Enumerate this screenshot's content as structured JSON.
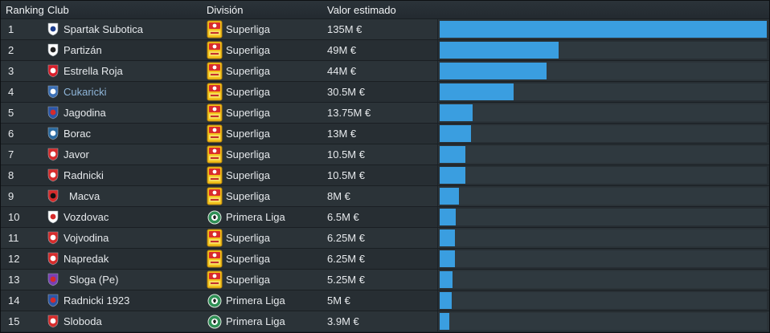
{
  "headers": {
    "ranking": "Ranking",
    "club": "Club",
    "division": "División",
    "value": "Valor estimado"
  },
  "colors": {
    "bar": "#3a9ee0",
    "link_club": "#8fb6d9",
    "background": "#232a30"
  },
  "rows": [
    {
      "rank": "1",
      "club": "Spartak Subotica",
      "division": "Superliga",
      "value": "135M €",
      "value_m": 135,
      "crest": "spartak-crest-icon",
      "comp": "superliga-logo-icon"
    },
    {
      "rank": "2",
      "club": "Partizán",
      "division": "Superliga",
      "value": "49M €",
      "value_m": 49,
      "crest": "partizan-crest-icon",
      "comp": "superliga-logo-icon"
    },
    {
      "rank": "3",
      "club": "Estrella Roja",
      "division": "Superliga",
      "value": "44M €",
      "value_m": 44,
      "crest": "estrella-roja-crest-icon",
      "comp": "superliga-logo-icon"
    },
    {
      "rank": "4",
      "club": "Cukaricki",
      "division": "Superliga",
      "value": "30.5M €",
      "value_m": 30.5,
      "crest": "cukaricki-crest-icon",
      "comp": "superliga-logo-icon",
      "highlight": true
    },
    {
      "rank": "5",
      "club": "Jagodina",
      "division": "Superliga",
      "value": "13.75M €",
      "value_m": 13.75,
      "crest": "jagodina-crest-icon",
      "comp": "superliga-logo-icon"
    },
    {
      "rank": "6",
      "club": "Borac",
      "division": "Superliga",
      "value": "13M €",
      "value_m": 13,
      "crest": "borac-crest-icon",
      "comp": "superliga-logo-icon"
    },
    {
      "rank": "7",
      "club": "Javor",
      "division": "Superliga",
      "value": "10.5M €",
      "value_m": 10.5,
      "crest": "javor-crest-icon",
      "comp": "superliga-logo-icon"
    },
    {
      "rank": "8",
      "club": "Radnicki",
      "division": "Superliga",
      "value": "10.5M €",
      "value_m": 10.5,
      "crest": "radnicki-crest-icon",
      "comp": "superliga-logo-icon"
    },
    {
      "rank": "9",
      "club": "Macva",
      "division": "Superliga",
      "value": "8M €",
      "value_m": 8,
      "crest": "macva-crest-icon",
      "comp": "superliga-logo-icon",
      "offset": true
    },
    {
      "rank": "10",
      "club": "Vozdovac",
      "division": "Primera Liga",
      "value": "6.5M €",
      "value_m": 6.5,
      "crest": "vozdovac-crest-icon",
      "comp": "primera-liga-logo-icon"
    },
    {
      "rank": "11",
      "club": "Vojvodina",
      "division": "Superliga",
      "value": "6.25M €",
      "value_m": 6.25,
      "crest": "vojvodina-crest-icon",
      "comp": "superliga-logo-icon"
    },
    {
      "rank": "12",
      "club": "Napredak",
      "division": "Superliga",
      "value": "6.25M €",
      "value_m": 6.25,
      "crest": "napredak-crest-icon",
      "comp": "superliga-logo-icon"
    },
    {
      "rank": "13",
      "club": "Sloga (Pe)",
      "division": "Superliga",
      "value": "5.25M €",
      "value_m": 5.25,
      "crest": "sloga-crest-icon",
      "comp": "superliga-logo-icon",
      "offset": true
    },
    {
      "rank": "14",
      "club": "Radnicki 1923",
      "division": "Primera Liga",
      "value": "5M €",
      "value_m": 5,
      "crest": "radnicki-1923-crest-icon",
      "comp": "primera-liga-logo-icon"
    },
    {
      "rank": "15",
      "club": "Sloboda",
      "division": "Primera Liga",
      "value": "3.9M €",
      "value_m": 3.9,
      "crest": "sloboda-crest-icon",
      "comp": "primera-liga-logo-icon"
    }
  ]
}
